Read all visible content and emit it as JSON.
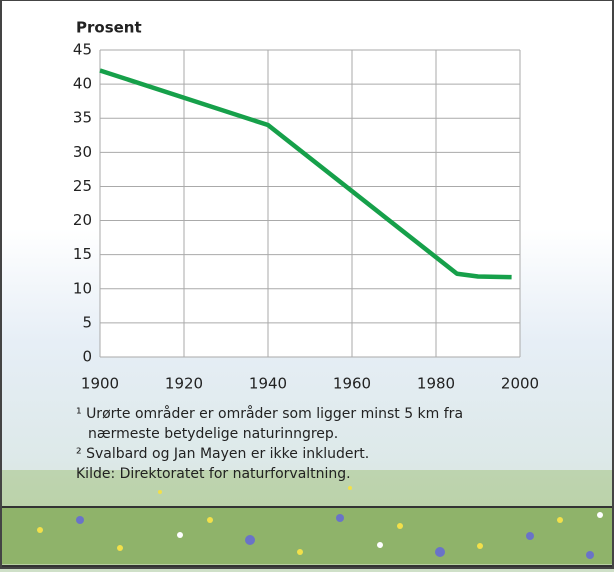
{
  "chart_data": {
    "type": "line",
    "y_label": "Prosent",
    "x": [
      1900,
      1940,
      1985,
      1990,
      1998
    ],
    "series": [
      {
        "name": "Urørte områder",
        "color": "#16a04a",
        "values": [
          42,
          34,
          12.2,
          11.8,
          11.7
        ]
      }
    ],
    "xlim": [
      1900,
      2000
    ],
    "xticks": [
      1900,
      1920,
      1940,
      1960,
      1980,
      2000
    ],
    "ylim": [
      0,
      45
    ],
    "yticks": [
      0,
      5,
      10,
      15,
      20,
      25,
      30,
      35,
      40,
      45
    ],
    "grid": true
  },
  "footnotes": [
    "¹ Urørte områder er områder som ligger minst 5 km fra nærmeste betydelige naturinngrep.",
    "² Svalbard og Jan Mayen er ikke inkludert.",
    "Kilde: Direktoratet for naturforvaltning."
  ]
}
